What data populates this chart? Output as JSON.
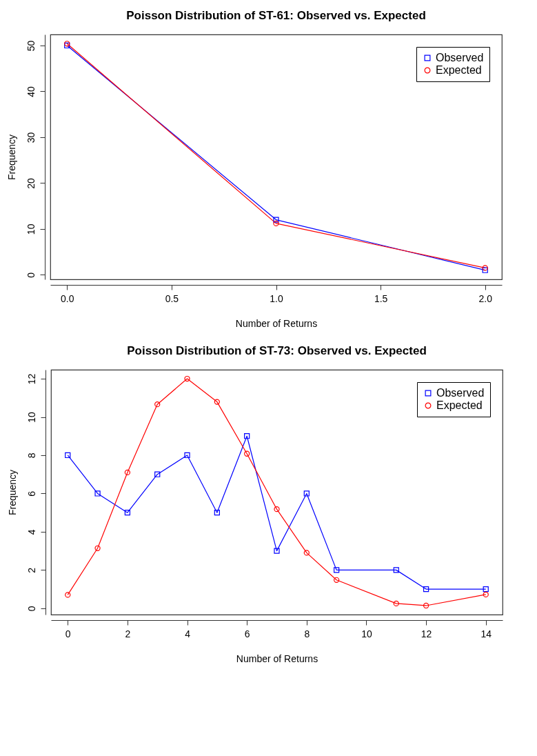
{
  "chart_data": [
    {
      "type": "line",
      "title": "Poisson Distribution of ST-61: Observed vs. Expected",
      "xlabel": "Number of Returns",
      "ylabel": "Frequency",
      "x": [
        0,
        1,
        2
      ],
      "series": [
        {
          "name": "Observed",
          "color": "#0000ff",
          "marker": "square",
          "values": [
            50,
            12,
            1
          ]
        },
        {
          "name": "Expected",
          "color": "#ff0000",
          "marker": "circle",
          "values": [
            50.4,
            11.2,
            1.5
          ]
        }
      ],
      "xlim": [
        -0.08,
        2.08
      ],
      "xticks": [
        {
          "value": 0,
          "label": "0.0"
        },
        {
          "value": 0.5,
          "label": "0.5"
        },
        {
          "value": 1,
          "label": "1.0"
        },
        {
          "value": 1.5,
          "label": "1.5"
        },
        {
          "value": 2,
          "label": "2.0"
        }
      ],
      "ylim": [
        -1,
        52.4
      ],
      "yticks": [
        0,
        10,
        20,
        30,
        40,
        50
      ],
      "grid": false,
      "legend": "top right",
      "line_style": "solid"
    },
    {
      "type": "line",
      "title": "Poisson Distribution of ST-73: Observed vs. Expected",
      "xlabel": "Number of Returns",
      "ylabel": "Frequency",
      "x": [
        0,
        1,
        2,
        3,
        4,
        5,
        6,
        7,
        8,
        9,
        11,
        12,
        14
      ],
      "series": [
        {
          "name": "Observed",
          "color": "#0000ff",
          "marker": "square",
          "values": [
            8,
            6,
            5,
            7,
            8,
            5,
            9,
            3,
            6,
            2,
            2,
            1,
            1
          ]
        },
        {
          "name": "Expected",
          "color": "#ff0000",
          "marker": "circle",
          "values": [
            0.7,
            3.14,
            7.1,
            10.66,
            12,
            10.79,
            8.08,
            5.18,
            2.9,
            1.48,
            0.25,
            0.14,
            0.72
          ]
        }
      ],
      "xlim": [
        -0.56,
        14.56
      ],
      "xticks": [
        0,
        2,
        4,
        6,
        8,
        10,
        12,
        14
      ],
      "ylim": [
        -0.33,
        12.47
      ],
      "yticks": [
        0,
        2,
        4,
        6,
        8,
        10,
        12
      ],
      "grid": false,
      "legend": "top right",
      "line_style": "solid"
    }
  ]
}
